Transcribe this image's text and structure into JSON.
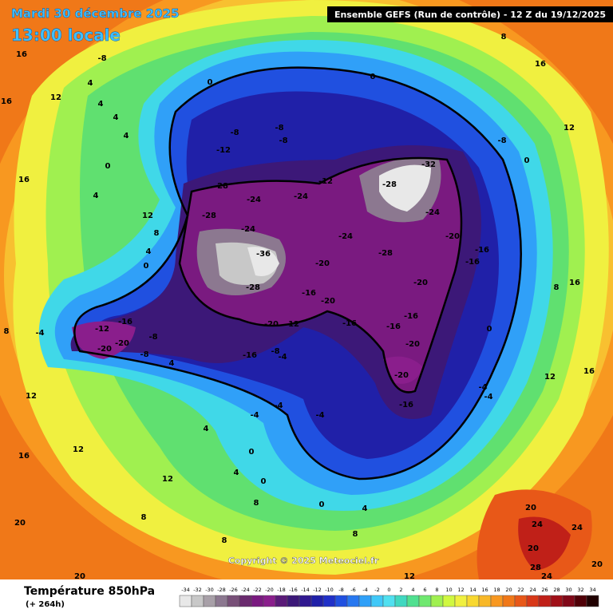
{
  "header": {
    "title": "Mardi 30 décembre 2025",
    "subtitle": "13:00 locale",
    "run": "Ensemble GEFS  (Run de contrôle)  -  12 Z du 19/12/2025",
    "copyright": "Copyright © 2025 Meteociel.fr"
  },
  "legend": {
    "title": "Température 850hPa",
    "subtitle": "(+ 264h)",
    "ticks": [
      -34,
      -32,
      -30,
      -28,
      -26,
      -24,
      -22,
      -20,
      -18,
      -16,
      -14,
      -12,
      -10,
      -8,
      -6,
      -4,
      -2,
      0,
      2,
      4,
      6,
      8,
      10,
      12,
      14,
      16,
      18,
      20,
      22,
      24,
      26,
      28,
      30,
      32,
      34
    ],
    "colors": [
      "#e8e8e8",
      "#c8c8c8",
      "#a8a0a8",
      "#8c7890",
      "#785078",
      "#6a2a6e",
      "#7a1a80",
      "#8a1e8c",
      "#5a1a78",
      "#3c1878",
      "#301890",
      "#2020a8",
      "#2030c8",
      "#2050e0",
      "#2878f0",
      "#30a0f8",
      "#40c8f8",
      "#50e0f0",
      "#40d8c0",
      "#50e090",
      "#70e870",
      "#a0f050",
      "#d0f840",
      "#f0f040",
      "#f8d830",
      "#f8b828",
      "#f89820",
      "#f07818",
      "#e85818",
      "#d83818",
      "#c02018",
      "#a01018",
      "#800818",
      "#500008",
      "#200000"
    ]
  },
  "contour_labels": [
    -8,
    16,
    12,
    4,
    4,
    4,
    4,
    0,
    4,
    12,
    8,
    4,
    0,
    16,
    16,
    0,
    0,
    16,
    12,
    8,
    0,
    -8,
    -8,
    -8,
    -8,
    -12,
    -28,
    -28,
    -24,
    -24,
    -12,
    -32,
    -28,
    -24,
    -24,
    -24,
    -20,
    -28,
    -36,
    -20,
    -16,
    -20,
    -28,
    -20,
    -16,
    -16,
    -16,
    -16,
    -16,
    -20,
    -20,
    -16,
    -16,
    -12,
    -20,
    -20,
    -8,
    -8,
    -16,
    -20,
    -12,
    -8,
    -4,
    -4,
    -4,
    -4,
    0,
    0,
    4,
    4,
    8,
    8,
    12,
    8,
    4,
    -4,
    8,
    12,
    16,
    20,
    20,
    12,
    0,
    -4,
    -4,
    12,
    8,
    16,
    16,
    4,
    0,
    8,
    12,
    20,
    24,
    24,
    20,
    28,
    24,
    20
  ]
}
